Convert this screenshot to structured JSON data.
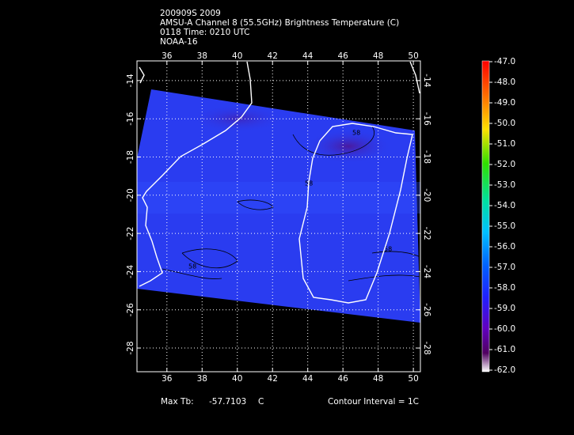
{
  "header": {
    "lines": [
      "200909S 2009",
      "AMSU-A Channel 8 (55.5GHz) Brightness Temperature (C)",
      "0118 Time: 0210 UTC",
      "NOAA-16"
    ]
  },
  "map": {
    "lon_range": [
      34.3,
      50.4
    ],
    "lat_range": [
      -12.97,
      -29.24
    ],
    "lon_ticks": [
      36,
      38,
      40,
      42,
      44,
      46,
      48,
      50
    ],
    "lat_ticks": [
      -14,
      -16,
      -18,
      -20,
      -22,
      -24,
      -26,
      -28
    ],
    "grid": true,
    "contour_labels": [
      "58",
      "58",
      "58",
      "58"
    ]
  },
  "colorbar": {
    "range": [
      -62,
      -47
    ],
    "ticks": [
      {
        "value": -47,
        "label": "-47.0"
      },
      {
        "value": -48,
        "label": "-48.0"
      },
      {
        "value": -49,
        "label": "-49.0"
      },
      {
        "value": -50,
        "label": "-50.0"
      },
      {
        "value": -51,
        "label": "-51.0"
      },
      {
        "value": -52,
        "label": "-52.0"
      },
      {
        "value": -53,
        "label": "-53.0"
      },
      {
        "value": -54,
        "label": "-54.0"
      },
      {
        "value": -55,
        "label": "-55.0"
      },
      {
        "value": -56,
        "label": "-56.0"
      },
      {
        "value": -57,
        "label": "-57.0"
      },
      {
        "value": -58,
        "label": "-58.0"
      },
      {
        "value": -59,
        "label": "-59.0"
      },
      {
        "value": -60,
        "label": "-60.0"
      },
      {
        "value": -61,
        "label": "-61.0"
      },
      {
        "value": -62,
        "label": "-62.0"
      }
    ]
  },
  "footer": {
    "max_label": "Max Tb:",
    "max_value": -57.7103,
    "unit": "C",
    "contour": "Contour Interval = 1C"
  }
}
